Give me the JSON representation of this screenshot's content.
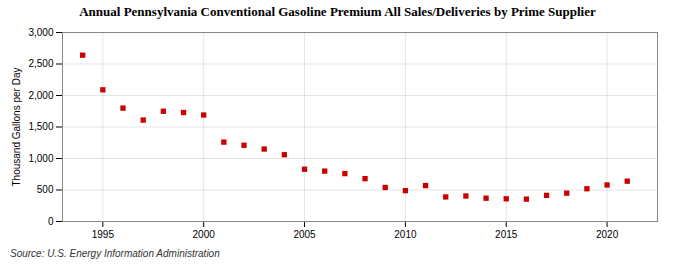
{
  "chart_data": {
    "type": "scatter",
    "title": "Annual Pennsylvania Conventional Gasoline Premium All Sales/Deliveries by Prime Supplier",
    "ylabel": "Thousand Gallons per Day",
    "source": "Source: U.S. Energy Information Administration",
    "x": [
      1994,
      1995,
      1996,
      1997,
      1998,
      1999,
      2000,
      2001,
      2002,
      2003,
      2004,
      2005,
      2006,
      2007,
      2008,
      2009,
      2010,
      2011,
      2012,
      2013,
      2014,
      2015,
      2016,
      2017,
      2018,
      2019,
      2020,
      2021
    ],
    "values": [
      2640,
      2090,
      1800,
      1610,
      1750,
      1730,
      1690,
      1260,
      1210,
      1150,
      1060,
      830,
      800,
      760,
      680,
      540,
      490,
      570,
      390,
      405,
      370,
      360,
      355,
      415,
      450,
      520,
      580,
      640
    ],
    "color": "#cc0000",
    "marker": "square",
    "xlim": [
      1993,
      2022.5
    ],
    "ylim": [
      0,
      3000
    ],
    "xticks": [
      1995,
      2000,
      2005,
      2010,
      2015,
      2020
    ],
    "yticks": [
      0,
      500,
      {
        "value": 1000,
        "label": "1,000"
      },
      {
        "value": 1500,
        "label": "1,500"
      },
      {
        "value": 2000,
        "label": "2,000"
      },
      {
        "value": 2500,
        "label": "2,500"
      },
      {
        "value": 3000,
        "label": "3,000"
      }
    ],
    "grid": true
  }
}
